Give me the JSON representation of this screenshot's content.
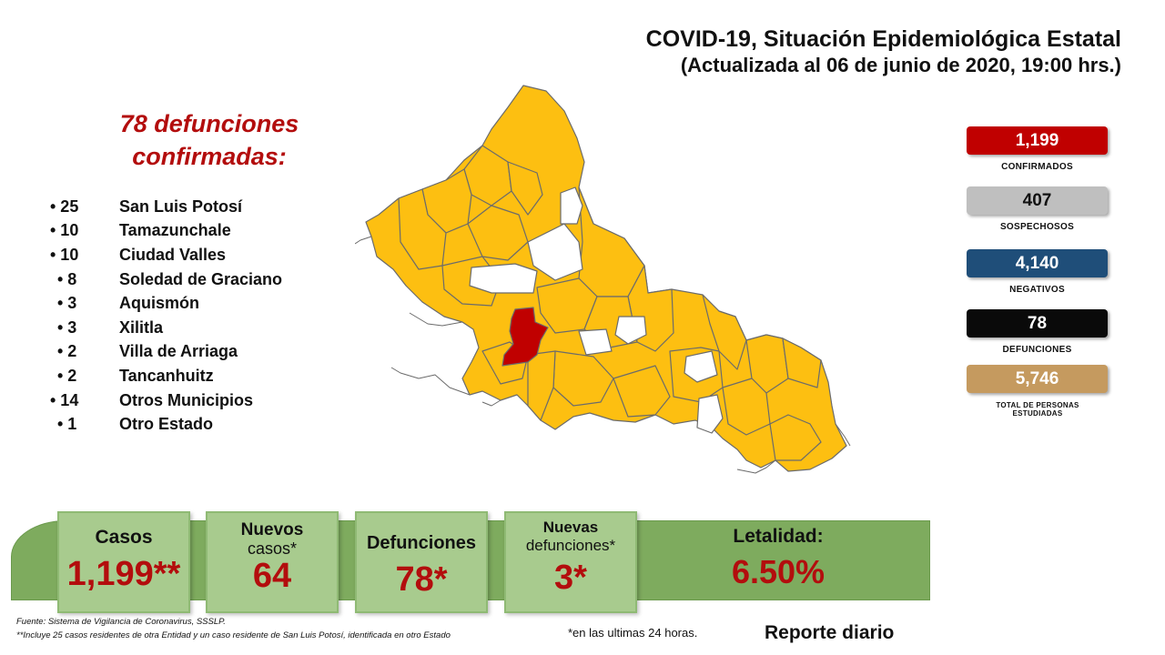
{
  "header": {
    "title": "COVID-19, Situación Epidemiológica Estatal",
    "subtitle": "(Actualizada al 06 de junio de 2020, 19:00 hrs.)"
  },
  "deaths_panel": {
    "heading_line1": "78 defunciones",
    "heading_line2": "confirmadas:",
    "items": [
      {
        "count": "• 25",
        "name": "San Luis Potosí"
      },
      {
        "count": "• 10",
        "name": "Tamazunchale"
      },
      {
        "count": "• 10",
        "name": "Ciudad Valles"
      },
      {
        "count": "• 8",
        "name": "Soledad de Graciano"
      },
      {
        "count": "• 3",
        "name": "Aquismón"
      },
      {
        "count": "• 3",
        "name": "Xilitla"
      },
      {
        "count": "• 2",
        "name": "Villa de Arriaga"
      },
      {
        "count": "• 2",
        "name": "Tancanhuitz"
      },
      {
        "count": "• 14",
        "name": "Otros Municipios"
      },
      {
        "count": "• 1",
        "name": "Otro Estado"
      }
    ]
  },
  "map": {
    "fill_colors": {
      "affected": "#fdbf11",
      "highlight": "#c00000",
      "none": "#ffffff",
      "border": "#6b6b6b"
    }
  },
  "stats": [
    {
      "value": "1,199",
      "label": "CONFIRMADOS",
      "bg": "#c00000",
      "fg": "#ffffff"
    },
    {
      "value": "407",
      "label": "SOSPECHOSOS",
      "bg": "#bfbfbf",
      "fg": "#111111"
    },
    {
      "value": "4,140",
      "label": "NEGATIVOS",
      "bg": "#1f4e79",
      "fg": "#ffffff"
    },
    {
      "value": "78",
      "label": "DEFUNCIONES",
      "bg": "#0a0a0a",
      "fg": "#ffffff"
    },
    {
      "value": "5,746",
      "label": "TOTAL DE PERSONAS ESTUDIADAS",
      "bg": "#c59a5f",
      "fg": "#ffffff"
    }
  ],
  "summary": {
    "casos": {
      "label": "Casos",
      "value": "1,199**"
    },
    "nuevos_casos": {
      "label_line1": "Nuevos",
      "label_line2": "casos*",
      "value": "64"
    },
    "defunciones": {
      "label": "Defunciones",
      "value": "78*"
    },
    "nuevas_defunciones": {
      "label_line1": "Nuevas",
      "label_line2": "defunciones*",
      "value": "3*"
    },
    "letalidad": {
      "label": "Letalidad:",
      "value": "6.50%"
    }
  },
  "footer": {
    "source": "Fuente: Sistema de Vigilancia de Coronavirus, SSSLP.",
    "footnote": "**Incluye 25 casos residentes de otra Entidad y un caso residente de San Luis Potosí, identificada en otro Estado",
    "note_24h": "*en las ultimas 24 horas.",
    "report": "Reporte diario"
  }
}
